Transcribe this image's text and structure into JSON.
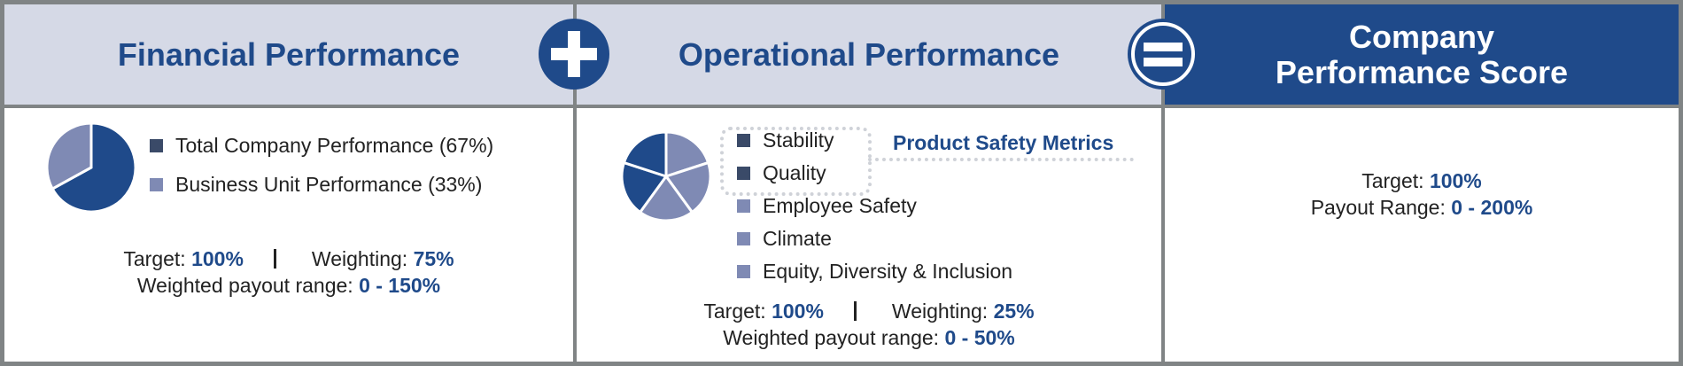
{
  "colors": {
    "dark": "#3a4a68",
    "medium": "#7f8ab4",
    "blue": "#1f4a8a",
    "header_light": "#d5d9e6",
    "divider": "#808485"
  },
  "financial": {
    "title": "Financial Performance",
    "legend": [
      {
        "label": "Total Company Performance (67%)",
        "swatch": "#3a4a68"
      },
      {
        "label": "Business Unit Performance (33%)",
        "swatch": "#7f8ab4"
      }
    ],
    "target_label": "Target:",
    "target_value": "100%",
    "weighting_label": "Weighting:",
    "weighting_value": "75%",
    "range_label": "Weighted payout range:",
    "range_value": "0 - 150%"
  },
  "operational": {
    "title": "Operational Performance",
    "legend": [
      {
        "label": "Stability",
        "swatch": "#3a4a68"
      },
      {
        "label": "Quality",
        "swatch": "#3a4a68"
      },
      {
        "label": "Employee Safety",
        "swatch": "#7f8ab4"
      },
      {
        "label": "Climate",
        "swatch": "#7f8ab4"
      },
      {
        "label": "Equity, Diversity & Inclusion",
        "swatch": "#7f8ab4"
      }
    ],
    "group_label": "Product Safety Metrics",
    "target_label": "Target:",
    "target_value": "100%",
    "weighting_label": "Weighting:",
    "weighting_value": "25%",
    "range_label": "Weighted payout range:",
    "range_value": "0 - 50%"
  },
  "company": {
    "title_line1": "Company",
    "title_line2": "Performance Score",
    "target_label": "Target:",
    "target_value": "100%",
    "range_label": "Payout Range:",
    "range_value": "0 - 200%"
  },
  "chart_data": [
    {
      "type": "pie",
      "slices": [
        {
          "label": "Total Company Performance",
          "value": 67,
          "color": "#1f4a8a"
        },
        {
          "label": "Business Unit Performance",
          "value": 33,
          "color": "#7f8ab4"
        }
      ]
    },
    {
      "type": "pie",
      "slices": [
        {
          "label": "Stability",
          "value": 20,
          "color": "#7f8ab4"
        },
        {
          "label": "Quality",
          "value": 20,
          "color": "#7f8ab4"
        },
        {
          "label": "Employee Safety",
          "value": 20,
          "color": "#7f8ab4"
        },
        {
          "label": "Climate",
          "value": 20,
          "color": "#1f4a8a"
        },
        {
          "label": "Equity, Diversity & Inclusion",
          "value": 20,
          "color": "#1f4a8a"
        }
      ]
    }
  ]
}
